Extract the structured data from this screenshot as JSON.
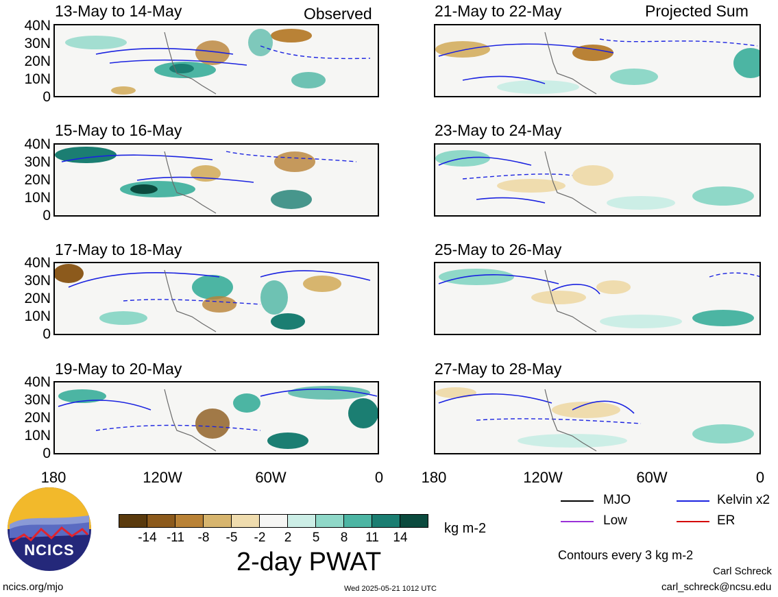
{
  "header": {
    "left_label": "Observed",
    "right_label": "Projected Sum"
  },
  "panels_left": [
    {
      "title": "13-May to 14-May"
    },
    {
      "title": "15-May to 16-May"
    },
    {
      "title": "17-May to 18-May"
    },
    {
      "title": "19-May to 20-May"
    }
  ],
  "panels_right": [
    {
      "title": "21-May to 22-May"
    },
    {
      "title": "23-May to 24-May"
    },
    {
      "title": "25-May to 26-May"
    },
    {
      "title": "27-May to 28-May"
    }
  ],
  "y_ticks": [
    "40N",
    "30N",
    "20N",
    "10N",
    "0"
  ],
  "x_ticks": [
    "180",
    "120W",
    "60W",
    "0"
  ],
  "colorbar": {
    "title": "2-day PWAT",
    "units": "kg m-2",
    "labels": [
      "-14",
      "-11",
      "-8",
      "-5",
      "-2",
      "2",
      "5",
      "8",
      "11",
      "14"
    ],
    "colors": [
      "#5a3a0d",
      "#8c5a1c",
      "#b98236",
      "#d7b56e",
      "#efdcae",
      "#f6f6f4",
      "#cceee6",
      "#8fd8c8",
      "#4cb5a3",
      "#1b7e72",
      "#0b4a3e"
    ]
  },
  "legend": {
    "items": [
      {
        "label": "MJO",
        "color": "#000000"
      },
      {
        "label": "Kelvin x2",
        "color": "#1a22e0"
      },
      {
        "label": "Low",
        "color": "#9a30d8"
      },
      {
        "label": "ER",
        "color": "#d40000"
      }
    ],
    "contour_note": "Contours every 3 kg m-2"
  },
  "logo": {
    "text": "NCICS"
  },
  "footer": {
    "url": "ncics.org/mjo",
    "timestamp": "Wed 2025-05-21 1012 UTC",
    "author": "Carl Schreck",
    "email": "carl_schreck@ncsu.edu"
  }
}
